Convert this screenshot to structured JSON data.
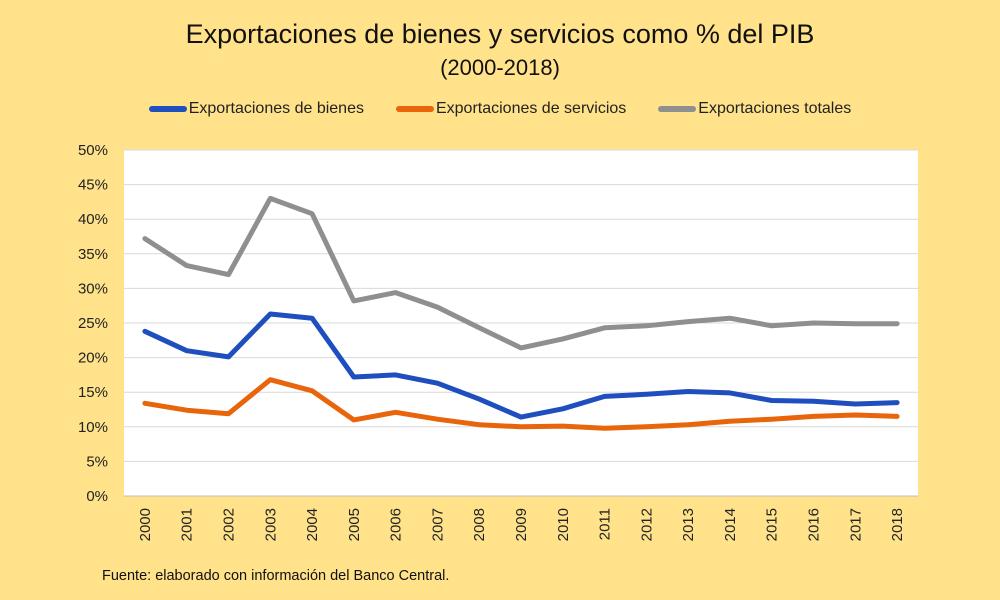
{
  "chart_data": {
    "type": "line",
    "title": "Exportaciones de bienes y servicios como % del PIB",
    "subtitle": "(2000-2018)",
    "source": "Fuente: elaborado con información del Banco Central.",
    "categories": [
      "2000",
      "2001",
      "2002",
      "2003",
      "2004",
      "2005",
      "2006",
      "2007",
      "2008",
      "2009",
      "2010",
      "2011",
      "2012",
      "2013",
      "2014",
      "2015",
      "2016",
      "2017",
      "2018"
    ],
    "y_ticks": [
      "0%",
      "5%",
      "10%",
      "15%",
      "20%",
      "25%",
      "30%",
      "35%",
      "40%",
      "45%",
      "50%"
    ],
    "ylim": [
      0,
      50
    ],
    "grid": true,
    "legend_position": "top",
    "series": [
      {
        "name": "Exportaciones de bienes",
        "color": "#1F4FBF",
        "values": [
          23.8,
          21.0,
          20.1,
          26.3,
          25.7,
          17.2,
          17.5,
          16.3,
          14.0,
          11.4,
          12.6,
          14.4,
          14.7,
          15.1,
          14.9,
          13.8,
          13.7,
          13.3,
          13.5
        ]
      },
      {
        "name": "Exportaciones de servicios",
        "color": "#E8650C",
        "values": [
          13.4,
          12.4,
          11.9,
          16.8,
          15.2,
          11.0,
          12.1,
          11.1,
          10.3,
          10.0,
          10.1,
          9.8,
          10.0,
          10.3,
          10.8,
          11.1,
          11.5,
          11.7,
          11.5
        ]
      },
      {
        "name": "Exportaciones totales",
        "color": "#8F8F8F",
        "values": [
          37.2,
          33.3,
          32.0,
          43.0,
          40.8,
          28.2,
          29.4,
          27.3,
          24.3,
          21.4,
          22.7,
          24.3,
          24.6,
          25.2,
          25.7,
          24.6,
          25.0,
          24.9,
          24.9
        ]
      }
    ]
  }
}
